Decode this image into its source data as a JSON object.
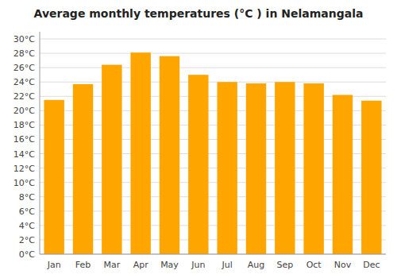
{
  "chart_data": {
    "type": "bar",
    "title": "Average monthly temperatures (°C ) in Nelamangala",
    "categories": [
      "Jan",
      "Feb",
      "Mar",
      "Apr",
      "May",
      "Jun",
      "Jul",
      "Aug",
      "Sep",
      "Oct",
      "Nov",
      "Dec"
    ],
    "values": [
      21.5,
      23.7,
      26.4,
      28.1,
      27.6,
      25.0,
      24.0,
      23.8,
      24.0,
      23.8,
      22.2,
      21.4
    ],
    "color": "#FFA500",
    "ylim": [
      0,
      31
    ],
    "yticks": [
      {
        "value": 0,
        "label": "0°C"
      },
      {
        "value": 2,
        "label": "2°C"
      },
      {
        "value": 4,
        "label": "4°C"
      },
      {
        "value": 6,
        "label": "6°C"
      },
      {
        "value": 8,
        "label": "8°C"
      },
      {
        "value": 10,
        "label": "10°C"
      },
      {
        "value": 12,
        "label": "12°C"
      },
      {
        "value": 14,
        "label": "14°C"
      },
      {
        "value": 16,
        "label": "16°C"
      },
      {
        "value": 18,
        "label": "18°C"
      },
      {
        "value": 20,
        "label": "20°C"
      },
      {
        "value": 22,
        "label": "22°C"
      },
      {
        "value": 24,
        "label": "24°C"
      },
      {
        "value": 26,
        "label": "26°C"
      },
      {
        "value": 28,
        "label": "28°C"
      },
      {
        "value": 30,
        "label": "30°C"
      }
    ],
    "grid": true
  }
}
